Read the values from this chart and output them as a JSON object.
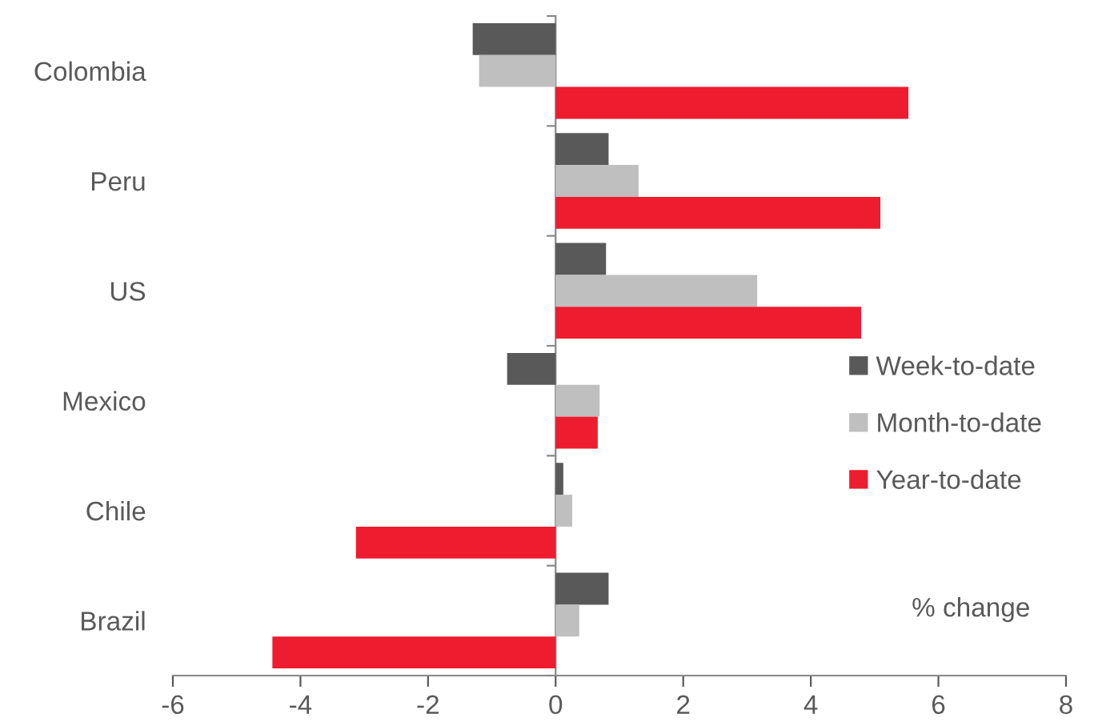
{
  "chart_data": {
    "type": "bar",
    "orientation": "horizontal",
    "categories": [
      "Colombia",
      "Peru",
      "US",
      "Mexico",
      "Chile",
      "Brazil"
    ],
    "series": [
      {
        "name": "Week-to-date",
        "color": "#595959",
        "values": [
          -1.3,
          0.83,
          0.79,
          -0.76,
          0.12,
          0.83
        ]
      },
      {
        "name": "Month-to-date",
        "color": "#bfbfbf",
        "values": [
          -1.2,
          1.3,
          3.16,
          0.69,
          0.26,
          0.37
        ]
      },
      {
        "name": "Year-to-date",
        "color": "#ed1c2e",
        "values": [
          5.53,
          5.09,
          4.79,
          0.66,
          -3.13,
          -4.44
        ]
      }
    ],
    "xlim": [
      -6,
      8
    ],
    "xticks": [
      -6,
      -4,
      -2,
      0,
      2,
      4,
      6,
      8
    ],
    "legend": "right",
    "annotations": [
      "% change"
    ]
  }
}
